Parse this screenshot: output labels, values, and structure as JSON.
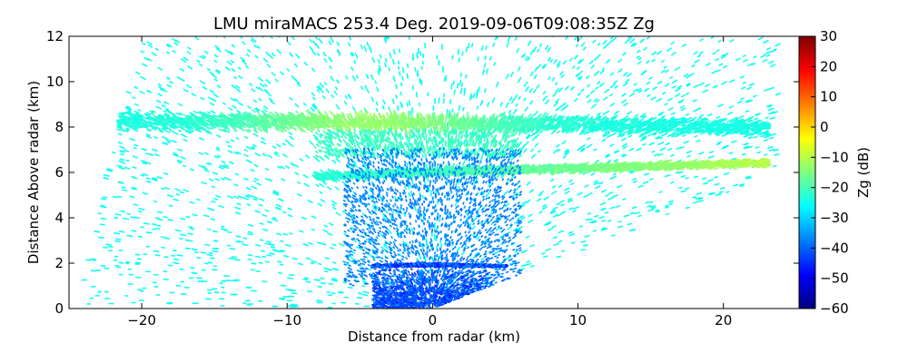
{
  "chart_data": {
    "type": "heatmap",
    "title": "LMU miraMACS 253.4 Deg. 2019-09-06T09:08:35Z  Zg",
    "xlabel": "Distance from radar (km)",
    "ylabel": "Distance Above radar  (km)",
    "xlim": [
      -25,
      25.2
    ],
    "ylim": [
      0,
      12
    ],
    "xticks": [
      -20,
      -10,
      0,
      10,
      20
    ],
    "yticks": [
      0,
      2,
      4,
      6,
      8,
      10,
      12
    ],
    "colorbar": {
      "label": "Zg (dB)",
      "range": [
        -60,
        30
      ],
      "ticks": [
        30,
        20,
        10,
        0,
        -10,
        -20,
        -30,
        -40,
        -50,
        -60
      ],
      "colormap": "jet"
    },
    "layers": [
      {
        "name": "upper cloud layer",
        "height_km": 8.1,
        "x_range_km": [
          -23,
          23
        ],
        "peak_dbz": -12
      },
      {
        "name": "mid cloud layer",
        "height_km": 6.0,
        "x_range_km": [
          -8,
          23
        ],
        "peak_dbz": -10
      },
      {
        "name": "near-surface clutter",
        "height_km": 0.5,
        "x_range_km": [
          -4,
          4
        ],
        "peak_dbz": -50
      }
    ]
  }
}
